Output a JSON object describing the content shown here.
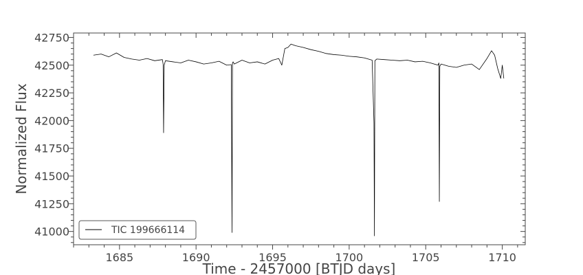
{
  "chart_data": {
    "type": "line",
    "xlabel": "Time - 2457000 [BTJD days]",
    "ylabel": "Normalized Flux",
    "xlim": [
      1682.0,
      1711.5
    ],
    "ylim": [
      40880,
      42790
    ],
    "xticks": [
      1685,
      1690,
      1695,
      1700,
      1705,
      1710
    ],
    "yticks": [
      41000,
      41250,
      41500,
      41750,
      42000,
      42250,
      42500,
      42750
    ],
    "grid": false,
    "legend_position": "lower-left",
    "series": [
      {
        "name": "TIC 199666114",
        "color": "#000000",
        "x": [
          1683.3,
          1683.8,
          1684.3,
          1684.8,
          1685.3,
          1685.8,
          1686.3,
          1686.8,
          1687.3,
          1687.8,
          1687.85,
          1687.88,
          1687.92,
          1688.0,
          1688.5,
          1689.0,
          1689.5,
          1690.0,
          1690.5,
          1691.0,
          1691.5,
          1692.0,
          1692.3,
          1692.35,
          1692.38,
          1692.42,
          1692.5,
          1693.0,
          1693.5,
          1694.0,
          1694.5,
          1695.0,
          1695.4,
          1695.6,
          1695.8,
          1696.0,
          1696.2,
          1696.5,
          1697.0,
          1697.5,
          1698.0,
          1698.5,
          1699.0,
          1699.5,
          1700.0,
          1700.5,
          1701.0,
          1701.5,
          1701.62,
          1701.65,
          1701.68,
          1701.8,
          1702.3,
          1702.8,
          1703.3,
          1703.8,
          1704.3,
          1704.8,
          1705.3,
          1705.8,
          1705.86,
          1705.89,
          1705.92,
          1706.0,
          1706.5,
          1707.0,
          1707.5,
          1708.0,
          1708.5,
          1709.0,
          1709.3,
          1709.5,
          1709.7,
          1709.9,
          1710.0,
          1710.1
        ],
        "y": [
          42590,
          42600,
          42575,
          42610,
          42570,
          42555,
          42545,
          42560,
          42540,
          42550,
          42510,
          41890,
          42500,
          42540,
          42530,
          42520,
          42545,
          42530,
          42510,
          42520,
          42535,
          42500,
          42505,
          40990,
          42520,
          42530,
          42510,
          42545,
          42520,
          42530,
          42510,
          42545,
          42560,
          42500,
          42650,
          42660,
          42690,
          42675,
          42660,
          42640,
          42625,
          42605,
          42595,
          42590,
          42580,
          42575,
          42565,
          42545,
          41980,
          40960,
          42540,
          42555,
          42550,
          42545,
          42540,
          42545,
          42530,
          42535,
          42520,
          42500,
          42520,
          41270,
          42490,
          42510,
          42490,
          42480,
          42500,
          42510,
          42460,
          42560,
          42630,
          42590,
          42470,
          42380,
          42500,
          42380
        ]
      }
    ]
  }
}
